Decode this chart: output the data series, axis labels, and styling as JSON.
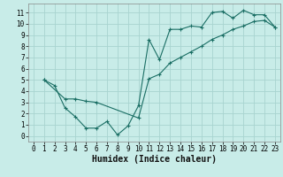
{
  "xlabel": "Humidex (Indice chaleur)",
  "bg_color": "#c8ece8",
  "grid_color": "#a8d4d0",
  "line_color": "#1a6e64",
  "xlim": [
    -0.5,
    23.5
  ],
  "ylim": [
    -0.5,
    11.8
  ],
  "xticks": [
    0,
    1,
    2,
    3,
    4,
    5,
    6,
    7,
    8,
    9,
    10,
    11,
    12,
    13,
    14,
    15,
    16,
    17,
    18,
    19,
    20,
    21,
    22,
    23
  ],
  "yticks": [
    0,
    1,
    2,
    3,
    4,
    5,
    6,
    7,
    8,
    9,
    10,
    11
  ],
  "curve1_x": [
    1,
    2,
    3,
    4,
    5,
    6,
    7,
    8,
    9,
    10,
    11,
    12,
    13,
    14,
    15,
    16,
    17,
    18,
    19,
    20,
    21,
    22,
    23
  ],
  "curve1_y": [
    5.0,
    4.5,
    2.5,
    1.7,
    0.7,
    0.7,
    1.3,
    0.1,
    0.9,
    2.7,
    8.6,
    6.8,
    9.5,
    9.5,
    9.8,
    9.7,
    11.0,
    11.1,
    10.5,
    11.2,
    10.8,
    10.8,
    9.7
  ],
  "curve2_x": [
    1,
    3,
    4,
    5,
    6,
    10,
    11,
    12,
    13,
    14,
    15,
    16,
    17,
    18,
    19,
    20,
    21,
    22,
    23
  ],
  "curve2_y": [
    5.0,
    3.3,
    3.3,
    3.1,
    3.0,
    1.6,
    5.1,
    5.5,
    6.5,
    7.0,
    7.5,
    8.0,
    8.6,
    9.0,
    9.5,
    9.8,
    10.2,
    10.3,
    9.7
  ],
  "tick_fontsize": 5.5,
  "xlabel_fontsize": 7.0
}
